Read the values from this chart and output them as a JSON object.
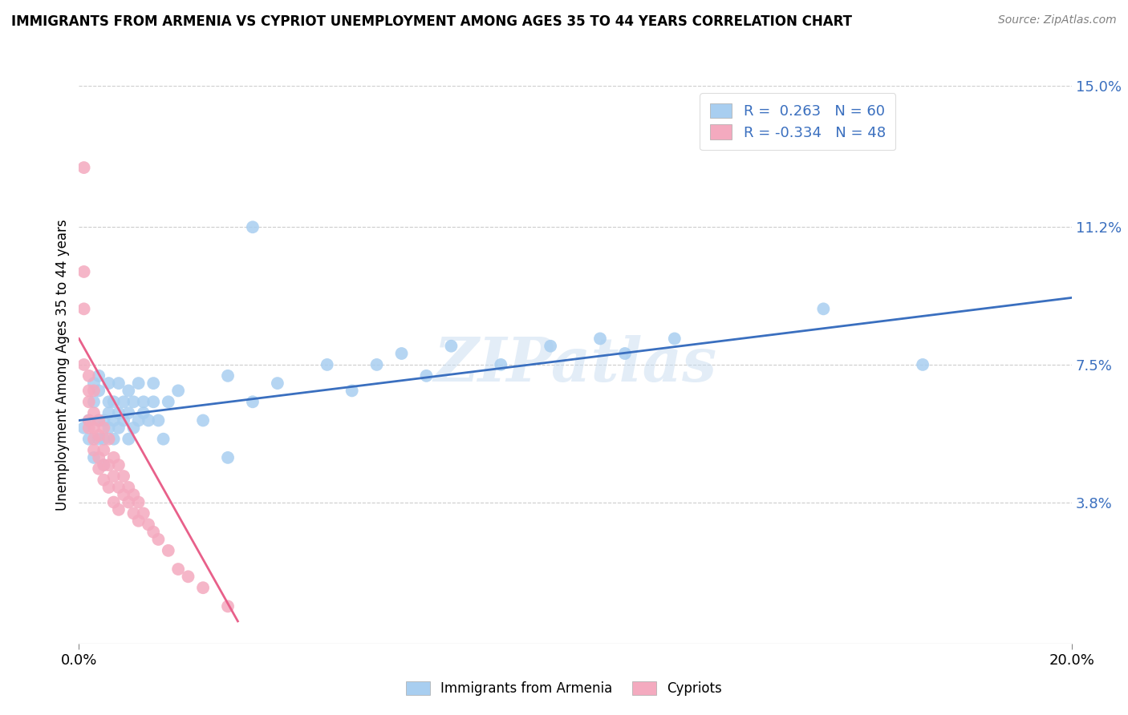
{
  "title": "IMMIGRANTS FROM ARMENIA VS CYPRIOT UNEMPLOYMENT AMONG AGES 35 TO 44 YEARS CORRELATION CHART",
  "source": "Source: ZipAtlas.com",
  "ylabel": "Unemployment Among Ages 35 to 44 years",
  "xlim": [
    0.0,
    0.2
  ],
  "ylim": [
    0.0,
    0.15
  ],
  "xtick_labels": [
    "0.0%",
    "20.0%"
  ],
  "ytick_labels_right": [
    "3.8%",
    "7.5%",
    "11.2%",
    "15.0%"
  ],
  "ytick_vals_right": [
    0.038,
    0.075,
    0.112,
    0.15
  ],
  "watermark": "ZIPatlas",
  "color_blue": "#A8CEF0",
  "color_pink": "#F4AABF",
  "line_blue": "#3A6FBF",
  "line_pink": "#E8608A",
  "background": "#FFFFFF",
  "grid_color": "#CCCCCC",
  "blue_scatter": [
    [
      0.001,
      0.058
    ],
    [
      0.002,
      0.06
    ],
    [
      0.002,
      0.055
    ],
    [
      0.003,
      0.065
    ],
    [
      0.003,
      0.07
    ],
    [
      0.003,
      0.05
    ],
    [
      0.004,
      0.06
    ],
    [
      0.004,
      0.055
    ],
    [
      0.004,
      0.068
    ],
    [
      0.004,
      0.072
    ],
    [
      0.005,
      0.048
    ],
    [
      0.005,
      0.055
    ],
    [
      0.005,
      0.06
    ],
    [
      0.006,
      0.062
    ],
    [
      0.006,
      0.058
    ],
    [
      0.006,
      0.065
    ],
    [
      0.006,
      0.07
    ],
    [
      0.007,
      0.055
    ],
    [
      0.007,
      0.06
    ],
    [
      0.007,
      0.065
    ],
    [
      0.008,
      0.058
    ],
    [
      0.008,
      0.062
    ],
    [
      0.008,
      0.07
    ],
    [
      0.009,
      0.06
    ],
    [
      0.009,
      0.065
    ],
    [
      0.01,
      0.055
    ],
    [
      0.01,
      0.062
    ],
    [
      0.01,
      0.068
    ],
    [
      0.011,
      0.058
    ],
    [
      0.011,
      0.065
    ],
    [
      0.012,
      0.06
    ],
    [
      0.012,
      0.07
    ],
    [
      0.013,
      0.065
    ],
    [
      0.013,
      0.062
    ],
    [
      0.014,
      0.06
    ],
    [
      0.015,
      0.065
    ],
    [
      0.015,
      0.07
    ],
    [
      0.016,
      0.06
    ],
    [
      0.017,
      0.055
    ],
    [
      0.018,
      0.065
    ],
    [
      0.02,
      0.068
    ],
    [
      0.025,
      0.06
    ],
    [
      0.03,
      0.072
    ],
    [
      0.03,
      0.05
    ],
    [
      0.035,
      0.065
    ],
    [
      0.04,
      0.07
    ],
    [
      0.05,
      0.075
    ],
    [
      0.055,
      0.068
    ],
    [
      0.06,
      0.075
    ],
    [
      0.065,
      0.078
    ],
    [
      0.07,
      0.072
    ],
    [
      0.075,
      0.08
    ],
    [
      0.085,
      0.075
    ],
    [
      0.095,
      0.08
    ],
    [
      0.105,
      0.082
    ],
    [
      0.11,
      0.078
    ],
    [
      0.12,
      0.082
    ],
    [
      0.035,
      0.112
    ],
    [
      0.15,
      0.09
    ],
    [
      0.17,
      0.075
    ]
  ],
  "pink_scatter": [
    [
      0.001,
      0.128
    ],
    [
      0.001,
      0.1
    ],
    [
      0.001,
      0.09
    ],
    [
      0.001,
      0.075
    ],
    [
      0.002,
      0.072
    ],
    [
      0.002,
      0.068
    ],
    [
      0.002,
      0.065
    ],
    [
      0.002,
      0.06
    ],
    [
      0.002,
      0.058
    ],
    [
      0.003,
      0.068
    ],
    [
      0.003,
      0.062
    ],
    [
      0.003,
      0.058
    ],
    [
      0.003,
      0.055
    ],
    [
      0.003,
      0.052
    ],
    [
      0.004,
      0.06
    ],
    [
      0.004,
      0.056
    ],
    [
      0.004,
      0.05
    ],
    [
      0.004,
      0.047
    ],
    [
      0.005,
      0.058
    ],
    [
      0.005,
      0.052
    ],
    [
      0.005,
      0.048
    ],
    [
      0.005,
      0.044
    ],
    [
      0.006,
      0.055
    ],
    [
      0.006,
      0.048
    ],
    [
      0.006,
      0.042
    ],
    [
      0.007,
      0.05
    ],
    [
      0.007,
      0.045
    ],
    [
      0.007,
      0.038
    ],
    [
      0.008,
      0.048
    ],
    [
      0.008,
      0.042
    ],
    [
      0.008,
      0.036
    ],
    [
      0.009,
      0.045
    ],
    [
      0.009,
      0.04
    ],
    [
      0.01,
      0.042
    ],
    [
      0.01,
      0.038
    ],
    [
      0.011,
      0.04
    ],
    [
      0.011,
      0.035
    ],
    [
      0.012,
      0.038
    ],
    [
      0.012,
      0.033
    ],
    [
      0.013,
      0.035
    ],
    [
      0.014,
      0.032
    ],
    [
      0.015,
      0.03
    ],
    [
      0.016,
      0.028
    ],
    [
      0.018,
      0.025
    ],
    [
      0.02,
      0.02
    ],
    [
      0.022,
      0.018
    ],
    [
      0.025,
      0.015
    ],
    [
      0.03,
      0.01
    ]
  ],
  "blue_line_x": [
    0.0,
    0.2
  ],
  "blue_line_y": [
    0.06,
    0.093
  ],
  "pink_line_x": [
    0.0,
    0.032
  ],
  "pink_line_y": [
    0.082,
    0.006
  ]
}
